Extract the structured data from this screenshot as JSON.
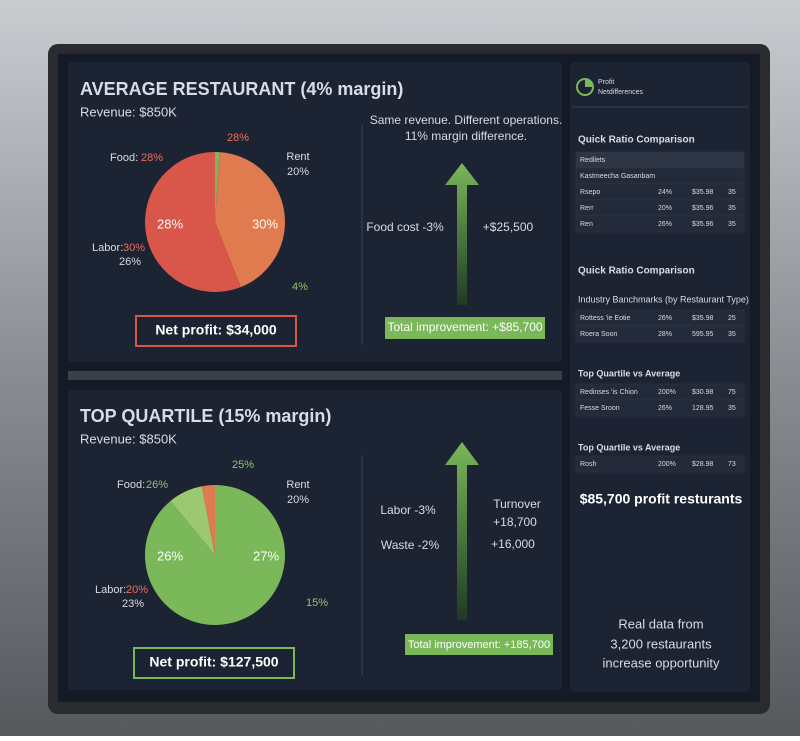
{
  "panels": [
    {
      "title": "AVERAGE RESTAURANT (4% margin)",
      "revenue": "Revenue: $850K",
      "pie": {
        "slices": [
          {
            "value": 1,
            "color": "#7ab85a"
          },
          {
            "value": 43,
            "color": "#e07b4f"
          },
          {
            "value": 56,
            "color": "#d9564a"
          }
        ],
        "labels": [
          {
            "text": "28%",
            "color": "#e8705a"
          },
          {
            "text": "Food:",
            "color": "#d8dce4"
          },
          {
            "text": "28%",
            "color": "#e8705a"
          },
          {
            "text": "Rent",
            "color": "#d8dce4"
          },
          {
            "text": "20%",
            "color": "#d8dce4"
          },
          {
            "text": "28%",
            "color": "#ffffff"
          },
          {
            "text": "30%",
            "color": "#ffffff"
          },
          {
            "text": "Labor:",
            "color": "#d8dce4"
          },
          {
            "text": "30%",
            "color": "#e8705a"
          },
          {
            "text": "26%",
            "color": "#d8dce4"
          },
          {
            "text": "4%",
            "color": "#8cc46a"
          }
        ]
      },
      "net_profit": "Net profit: $34,000",
      "net_color": "#d9564a",
      "headline": [
        "Same revenue. Different operations.",
        "11% margin difference."
      ],
      "arrow_labels": [
        "Food cost -3%",
        "+$25,500"
      ],
      "total": "Total improvement: +$85,700"
    },
    {
      "title": "TOP QUARTILE (15% margin)",
      "revenue": "Revenue: $850K",
      "pie": {
        "slices": [
          {
            "value": 89,
            "color": "#7ab85a"
          },
          {
            "value": 8,
            "color": "#9cc872"
          },
          {
            "value": 3,
            "color": "#e07b4f"
          }
        ],
        "labels": [
          {
            "text": "25%",
            "color": "#8cc46a"
          },
          {
            "text": "Food:",
            "color": "#d8dce4"
          },
          {
            "text": "26%",
            "color": "#8cc46a"
          },
          {
            "text": "Rent",
            "color": "#d8dce4"
          },
          {
            "text": "20%",
            "color": "#d8dce4"
          },
          {
            "text": "26%",
            "color": "#ffffff"
          },
          {
            "text": "27%",
            "color": "#ffffff"
          },
          {
            "text": "Labor:",
            "color": "#d8dce4"
          },
          {
            "text": "20%",
            "color": "#e8705a"
          },
          {
            "text": "23%",
            "color": "#d8dce4"
          },
          {
            "text": "15%",
            "color": "#8cc46a"
          }
        ]
      },
      "net_profit": "Net profit: $127,500",
      "net_color": "#7ab85a",
      "arrow_labels": [
        "Labor -3%",
        "Turnover",
        "+18,700",
        "Waste -2%",
        "+16,000"
      ],
      "total": "Total improvement: +185,700"
    }
  ],
  "sidebar": {
    "brand": [
      "Profit",
      "Netdifferences"
    ],
    "headings": [
      "Quick Ratio Comparison",
      "Quick Ratio Comparison",
      "Industry Banchmarks (by Restaurant Type)",
      "Top Quartile vs Average",
      "Top Quartile vs Average"
    ],
    "tables": [
      [
        [
          "Redilets"
        ],
        [
          "Kastmeecha Gasanbam"
        ],
        [
          "Rsepo",
          "24%",
          "$35.98",
          "35"
        ],
        [
          "Rerr",
          "20%",
          "$35.96",
          "35"
        ],
        [
          "Ren",
          "26%",
          "$35.96",
          "35"
        ]
      ],
      [
        [
          "Rottess 'ie Eotie",
          "26%",
          "$35.98",
          "25"
        ],
        [
          "Roera Soon",
          "28%",
          "595.95",
          "35"
        ]
      ],
      [
        [
          "Redinses 'is Chion",
          "200%",
          "$30.98",
          "75"
        ],
        [
          "Fesse Sroon",
          "26%",
          "128.95",
          "35"
        ]
      ],
      [
        [
          "Rosh",
          "200%",
          "$28.98",
          "73"
        ]
      ]
    ],
    "highlight": "$85,700 profit resturants",
    "footer": [
      "Real data from",
      "3,200 restaurants",
      "increase opportunity"
    ]
  }
}
